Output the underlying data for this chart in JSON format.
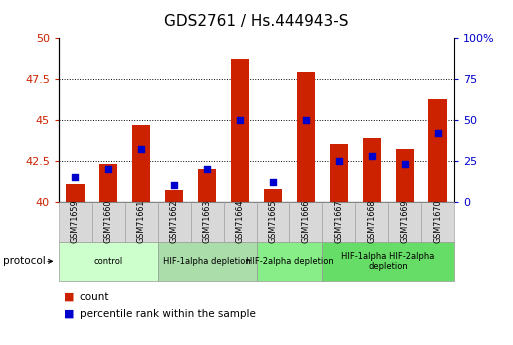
{
  "title": "GDS2761 / Hs.444943-S",
  "samples": [
    "GSM71659",
    "GSM71660",
    "GSM71661",
    "GSM71662",
    "GSM71663",
    "GSM71664",
    "GSM71665",
    "GSM71666",
    "GSM71667",
    "GSM71668",
    "GSM71669",
    "GSM71670"
  ],
  "count_values": [
    41.1,
    42.3,
    44.7,
    40.7,
    42.0,
    48.7,
    40.8,
    47.9,
    43.5,
    43.9,
    43.2,
    46.3
  ],
  "percentile_values": [
    15,
    20,
    32,
    10,
    20,
    50,
    12,
    50,
    25,
    28,
    23,
    42
  ],
  "ylim_left": [
    40,
    50
  ],
  "ylim_right": [
    0,
    100
  ],
  "yticks_left": [
    40,
    42.5,
    45,
    47.5,
    50
  ],
  "ytick_labels_left": [
    "40",
    "42.5",
    "45",
    "47.5",
    "50"
  ],
  "ytick_labels_right": [
    "0",
    "25",
    "50",
    "75",
    "100%"
  ],
  "bar_color": "#cc2200",
  "dot_color": "#0000cc",
  "bar_width": 0.55,
  "groups": [
    {
      "label": "control",
      "indices": [
        0,
        1,
        2
      ],
      "color": "#ccffcc"
    },
    {
      "label": "HIF-1alpha depletion",
      "indices": [
        3,
        4,
        5
      ],
      "color": "#aaddaa"
    },
    {
      "label": "HIF-2alpha depletion",
      "indices": [
        6,
        7
      ],
      "color": "#88ee88"
    },
    {
      "label": "HIF-1alpha HIF-2alpha\ndepletion",
      "indices": [
        8,
        9,
        10,
        11
      ],
      "color": "#66dd66"
    }
  ],
  "protocol_label": "protocol",
  "legend_count_label": "count",
  "legend_percentile_label": "percentile rank within the sample",
  "title_fontsize": 11,
  "axis_fontsize": 8,
  "tick_label_color_left": "#cc2200",
  "tick_label_color_right": "#0000cc",
  "background_color": "#ffffff",
  "plot_bg_color": "#ffffff"
}
